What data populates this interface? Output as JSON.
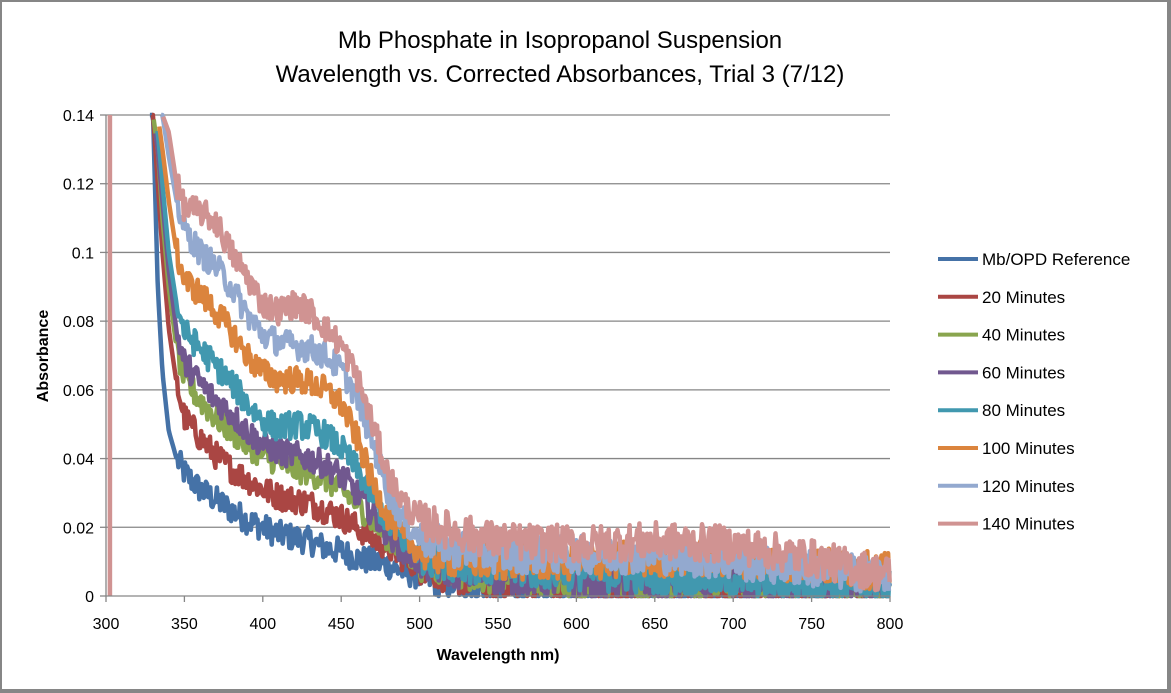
{
  "chart_data": {
    "type": "line",
    "title": "Mb Phosphate in Isopropanol Suspension",
    "subtitle": "Wavelength vs. Corrected Absorbances, Trial 3 (7/12)",
    "xlabel": "Wavelength nm)",
    "ylabel": "Absorbance",
    "xlim": [
      300,
      800
    ],
    "ylim": [
      0,
      0.14
    ],
    "xticks": [
      "300",
      "350",
      "400",
      "450",
      "500",
      "550",
      "600",
      "650",
      "700",
      "750",
      "800"
    ],
    "yticks": [
      "0",
      "0.02",
      "0.04",
      "0.06",
      "0.08",
      "0.1",
      "0.12",
      "0.14"
    ],
    "grid": "horizontal",
    "legend_position": "right",
    "x": [
      330,
      333,
      336,
      340,
      345,
      350,
      360,
      370,
      380,
      390,
      400,
      410,
      420,
      430,
      440,
      450,
      460,
      470,
      480,
      490,
      500,
      520,
      550,
      600,
      650,
      700,
      750,
      800
    ],
    "series": [
      {
        "name": "Mb/OPD Reference",
        "color": "#4572A7",
        "values": [
          0.14,
          0.09,
          0.065,
          0.048,
          0.04,
          0.036,
          0.031,
          0.028,
          0.025,
          0.022,
          0.02,
          0.018,
          0.017,
          0.016,
          0.014,
          0.013,
          0.011,
          0.01,
          0.009,
          0.007,
          0.006,
          0.004,
          0.002,
          0.001,
          0.0,
          0.0,
          0.0,
          0.0
        ]
      },
      {
        "name": "20 Minutes",
        "color": "#AA4643",
        "values": [
          0.14,
          0.12,
          0.1,
          0.078,
          0.062,
          0.052,
          0.046,
          0.041,
          0.037,
          0.034,
          0.031,
          0.029,
          0.028,
          0.027,
          0.025,
          0.023,
          0.02,
          0.017,
          0.014,
          0.011,
          0.009,
          0.006,
          0.004,
          0.003,
          0.002,
          0.002,
          0.002,
          0.002
        ]
      },
      {
        "name": "40 Minutes",
        "color": "#89A54E",
        "values": [
          0.14,
          0.13,
          0.11,
          0.09,
          0.072,
          0.063,
          0.057,
          0.052,
          0.048,
          0.044,
          0.041,
          0.039,
          0.037,
          0.036,
          0.034,
          0.031,
          0.027,
          0.022,
          0.017,
          0.013,
          0.01,
          0.008,
          0.006,
          0.005,
          0.004,
          0.004,
          0.004,
          0.003
        ]
      },
      {
        "name": "60 Minutes",
        "color": "#71588F",
        "values": [
          0.14,
          0.13,
          0.115,
          0.095,
          0.077,
          0.068,
          0.062,
          0.057,
          0.053,
          0.048,
          0.044,
          0.042,
          0.041,
          0.04,
          0.038,
          0.035,
          0.03,
          0.024,
          0.018,
          0.013,
          0.01,
          0.008,
          0.006,
          0.005,
          0.004,
          0.004,
          0.004,
          0.004
        ]
      },
      {
        "name": "80 Minutes",
        "color": "#4198AF",
        "values": [
          0.14,
          0.135,
          0.12,
          0.1,
          0.085,
          0.077,
          0.072,
          0.067,
          0.062,
          0.056,
          0.051,
          0.049,
          0.05,
          0.049,
          0.047,
          0.043,
          0.037,
          0.029,
          0.021,
          0.016,
          0.012,
          0.01,
          0.008,
          0.007,
          0.006,
          0.005,
          0.004,
          0.003
        ]
      },
      {
        "name": "100 Minutes",
        "color": "#DB843D",
        "values": [
          0.14,
          0.14,
          0.13,
          0.115,
          0.1,
          0.092,
          0.088,
          0.083,
          0.077,
          0.07,
          0.065,
          0.063,
          0.063,
          0.062,
          0.06,
          0.056,
          0.046,
          0.033,
          0.023,
          0.017,
          0.013,
          0.011,
          0.01,
          0.01,
          0.011,
          0.011,
          0.009,
          0.007
        ]
      },
      {
        "name": "120 Minutes",
        "color": "#93A9CF",
        "values": [
          0.14,
          0.14,
          0.14,
          0.128,
          0.115,
          0.107,
          0.1,
          0.096,
          0.09,
          0.082,
          0.076,
          0.074,
          0.073,
          0.072,
          0.07,
          0.066,
          0.058,
          0.045,
          0.03,
          0.022,
          0.017,
          0.014,
          0.012,
          0.012,
          0.012,
          0.01,
          0.008,
          0.006
        ]
      },
      {
        "name": "140 Minutes",
        "color": "#D09392",
        "values": [
          0.14,
          0.14,
          0.14,
          0.135,
          0.12,
          0.113,
          0.112,
          0.109,
          0.1,
          0.093,
          0.085,
          0.083,
          0.085,
          0.083,
          0.078,
          0.073,
          0.064,
          0.05,
          0.035,
          0.027,
          0.022,
          0.019,
          0.016,
          0.015,
          0.016,
          0.015,
          0.011,
          0.006
        ]
      }
    ],
    "annotations": [
      {
        "text": "140 Minutes series shows a vertical spike at ~302 nm spanning full y range"
      }
    ]
  }
}
